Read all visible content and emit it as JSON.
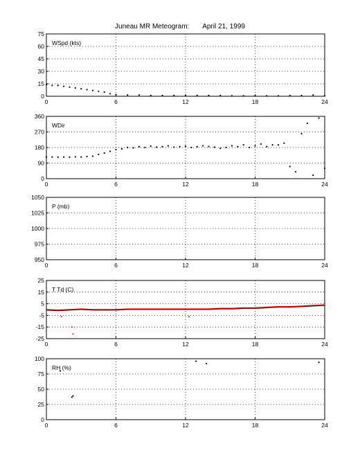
{
  "header": {
    "title": "Juneau MR Meteogram:",
    "date": "April 21, 1999"
  },
  "colors": {
    "dew_point": "#e00000",
    "data": "#000000",
    "grid": "#000000"
  },
  "chart_data": [
    {
      "id": "wspd",
      "type": "scatter",
      "panel_label": "WSpd (kts)",
      "xlim": [
        0,
        24
      ],
      "ylim": [
        0,
        75
      ],
      "xticks": [
        0,
        6,
        12,
        18,
        24
      ],
      "yticks": [
        0,
        15,
        30,
        45,
        60,
        75
      ],
      "grid": true,
      "series": [
        {
          "color": "#000000",
          "values": [
            [
              0,
              14
            ],
            [
              0.5,
              13
            ],
            [
              1,
              13
            ],
            [
              1.5,
              12
            ],
            [
              2,
              11
            ],
            [
              2.5,
              10
            ],
            [
              3,
              9
            ],
            [
              3.5,
              8
            ],
            [
              4,
              7
            ],
            [
              4.5,
              6
            ],
            [
              5,
              5
            ],
            [
              5.5,
              3
            ],
            [
              6,
              2
            ],
            [
              7,
              1.5
            ],
            [
              8,
              1.5
            ],
            [
              9,
              1
            ],
            [
              10,
              1
            ],
            [
              11,
              1
            ],
            [
              12,
              1
            ],
            [
              13,
              1
            ],
            [
              14,
              1
            ],
            [
              15,
              1
            ],
            [
              16,
              0.5
            ],
            [
              17,
              0.5
            ],
            [
              18,
              0.5
            ],
            [
              19,
              0.5
            ],
            [
              20,
              0.5
            ],
            [
              21,
              1
            ],
            [
              22,
              1
            ],
            [
              23,
              1.5
            ],
            [
              24,
              0.5
            ]
          ]
        }
      ]
    },
    {
      "id": "wdir",
      "type": "scatter",
      "panel_label": "WDir",
      "xlim": [
        0,
        24
      ],
      "ylim": [
        0,
        360
      ],
      "xticks": [
        0,
        6,
        12,
        18,
        24
      ],
      "yticks": [
        0,
        90,
        180,
        270,
        360
      ],
      "grid": true,
      "series": [
        {
          "color": "#000000",
          "values": [
            [
              0,
              125
            ],
            [
              0.5,
              125
            ],
            [
              1,
              124
            ],
            [
              1.5,
              125
            ],
            [
              2,
              124
            ],
            [
              2.5,
              126
            ],
            [
              3,
              125
            ],
            [
              3.5,
              128
            ],
            [
              4,
              130
            ],
            [
              4.5,
              140
            ],
            [
              5,
              148
            ],
            [
              5.5,
              158
            ],
            [
              6,
              168
            ],
            [
              6.5,
              172
            ],
            [
              7,
              180
            ],
            [
              7.5,
              178
            ],
            [
              8,
              185
            ],
            [
              8.5,
              180
            ],
            [
              9,
              188
            ],
            [
              9.5,
              182
            ],
            [
              10,
              185
            ],
            [
              10.5,
              190
            ],
            [
              11,
              182
            ],
            [
              11.5,
              185
            ],
            [
              12,
              188
            ],
            [
              12.5,
              180
            ],
            [
              13,
              185
            ],
            [
              13.5,
              190
            ],
            [
              14,
              186
            ],
            [
              14.5,
              182
            ],
            [
              15,
              175
            ],
            [
              15.5,
              180
            ],
            [
              16,
              190
            ],
            [
              16.5,
              185
            ],
            [
              17,
              195
            ],
            [
              17.5,
              180
            ],
            [
              18,
              190
            ],
            [
              18.5,
              200
            ],
            [
              19,
              185
            ],
            [
              19.5,
              195
            ],
            [
              20,
              195
            ],
            [
              20.5,
              205
            ],
            [
              21,
              70
            ],
            [
              21.5,
              40
            ],
            [
              22,
              260
            ],
            [
              22.5,
              320
            ],
            [
              23,
              20
            ],
            [
              23.5,
              350
            ],
            [
              24,
              60
            ]
          ]
        }
      ]
    },
    {
      "id": "pressure",
      "type": "scatter",
      "panel_label": "P (mb)",
      "xlim": [
        0,
        24
      ],
      "ylim": [
        950,
        1050
      ],
      "xticks": [
        0,
        6,
        12,
        18,
        24
      ],
      "yticks": [
        950,
        975,
        1000,
        1025,
        1050
      ],
      "grid": true,
      "series": []
    },
    {
      "id": "temp",
      "type": "line",
      "panel_label": "T Td (C)",
      "xlim": [
        0,
        24
      ],
      "ylim": [
        -25,
        25
      ],
      "xticks": [
        0,
        6,
        12,
        18,
        24
      ],
      "yticks": [
        -25,
        -15,
        -5,
        5,
        15,
        25
      ],
      "grid": true,
      "series": [
        {
          "color": "#000000",
          "values": [
            [
              0,
              -0.5
            ],
            [
              1,
              -1
            ],
            [
              2,
              -0.5
            ],
            [
              3,
              0
            ],
            [
              4,
              -0.5
            ],
            [
              5,
              -0.5
            ],
            [
              6,
              -0.5
            ],
            [
              7,
              0
            ],
            [
              8,
              0
            ],
            [
              9,
              0
            ],
            [
              10,
              0
            ],
            [
              11,
              0
            ],
            [
              12,
              0
            ],
            [
              13,
              0
            ],
            [
              14,
              0
            ],
            [
              15,
              0.5
            ],
            [
              16,
              0.5
            ],
            [
              17,
              1
            ],
            [
              18,
              1
            ],
            [
              19,
              1.5
            ],
            [
              20,
              2
            ],
            [
              21,
              2
            ],
            [
              22,
              2.5
            ],
            [
              23,
              3
            ],
            [
              24,
              3.5
            ]
          ]
        },
        {
          "color": "#e00000",
          "values": [
            [
              0,
              0
            ],
            [
              1,
              -0.5
            ],
            [
              2,
              0
            ],
            [
              3,
              0.5
            ],
            [
              4,
              0
            ],
            [
              5,
              0
            ],
            [
              6,
              0
            ],
            [
              7,
              0.5
            ],
            [
              8,
              0.5
            ],
            [
              9,
              0.5
            ],
            [
              10,
              0.5
            ],
            [
              11,
              0.5
            ],
            [
              12,
              0.5
            ],
            [
              13,
              0.5
            ],
            [
              14,
              0.5
            ],
            [
              15,
              1
            ],
            [
              16,
              1
            ],
            [
              17,
              1.5
            ],
            [
              18,
              1.5
            ],
            [
              19,
              2
            ],
            [
              20,
              2.5
            ],
            [
              21,
              2.5
            ],
            [
              22,
              3
            ],
            [
              23,
              3.5
            ],
            [
              24,
              4
            ]
          ]
        }
      ],
      "outliers": [
        [
          1.3,
          -6
        ],
        [
          2.2,
          -15
        ],
        [
          2.3,
          -21
        ],
        [
          12.3,
          -6
        ]
      ]
    },
    {
      "id": "rh",
      "type": "scatter",
      "panel_label": "RH (%)",
      "xlim": [
        0,
        24
      ],
      "ylim": [
        0,
        100
      ],
      "xticks": [
        0,
        6,
        12,
        18,
        24
      ],
      "yticks": [
        0,
        25,
        50,
        75,
        100
      ],
      "grid": true,
      "series": [
        {
          "color": "#000000",
          "values": [
            [
              1.2,
              80
            ],
            [
              2.2,
              37
            ],
            [
              2.3,
              39
            ],
            [
              12.9,
              96
            ],
            [
              13.8,
              92
            ],
            [
              23.5,
              94
            ]
          ]
        }
      ]
    }
  ]
}
